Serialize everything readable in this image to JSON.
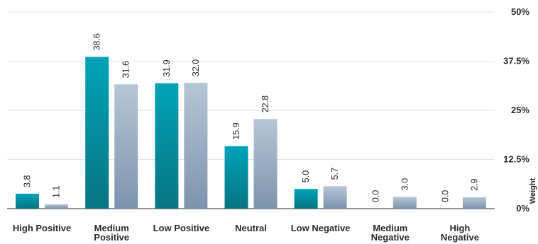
{
  "chart_data": {
    "type": "bar",
    "categories": [
      [
        "High Positive"
      ],
      [
        "Medium",
        "Positive"
      ],
      [
        "Low Positive"
      ],
      [
        "Neutral"
      ],
      [
        "Low Negative"
      ],
      [
        "Medium",
        "Negative"
      ],
      [
        "High",
        "Negative"
      ]
    ],
    "series": [
      {
        "values": [
          3.8,
          38.6,
          31.9,
          15.9,
          5.0,
          0.0,
          0.0
        ],
        "labels": [
          "3.8",
          "38.6",
          "31.9",
          "15.9",
          "5.0",
          "0.0",
          "0.0"
        ],
        "color_top": "#00a3b8",
        "color_bottom": "#087482"
      },
      {
        "values": [
          1.1,
          31.6,
          32.0,
          22.8,
          5.7,
          3.0,
          2.9
        ],
        "labels": [
          "1.1",
          "31.6",
          "32.0",
          "22.8",
          "5.7",
          "3.0",
          "2.9"
        ],
        "color_top": "#b7c6d6",
        "color_bottom": "#7d93ad"
      }
    ],
    "title": "",
    "xlabel": "",
    "ylabel": "Weight",
    "ylim": [
      0,
      50
    ],
    "yticks": [
      0,
      12.5,
      25,
      37.5,
      50
    ],
    "ytick_labels": [
      "0%",
      "12.5%",
      "25%",
      "37.5%",
      "50%"
    ],
    "grid": true,
    "axis_position": "right",
    "legend": "none"
  }
}
